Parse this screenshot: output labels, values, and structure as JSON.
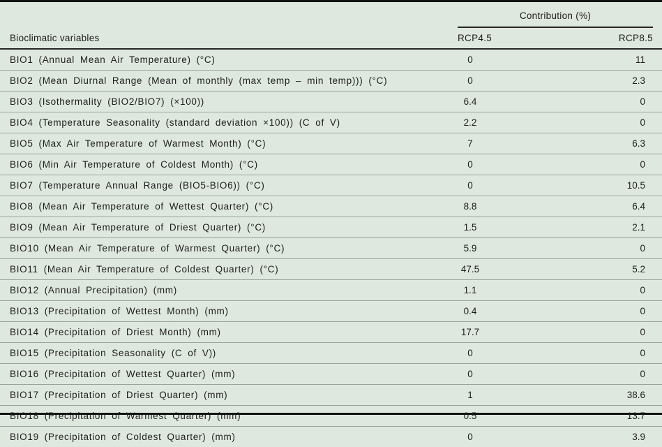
{
  "table": {
    "group_header": "Contribution (%)",
    "columns": {
      "variables": "Bioclimatic variables",
      "rcp45": "RCP4.5",
      "rcp85": "RCP8.5"
    },
    "rows": [
      {
        "variable": "BIO1 (Annual Mean Air Temperature) (°C)",
        "rcp45": "0",
        "rcp85": "11"
      },
      {
        "variable": "BIO2 (Mean Diurnal Range (Mean of monthly (max temp – min temp))) (°C)",
        "rcp45": "0",
        "rcp85": "2.3"
      },
      {
        "variable": "BIO3 (Isothermality (BIO2/BIO7) (×100))",
        "rcp45": "6.4",
        "rcp85": "0"
      },
      {
        "variable": "BIO4 (Temperature Seasonality (standard deviation ×100)) (C of V)",
        "rcp45": "2.2",
        "rcp85": "0"
      },
      {
        "variable": "BIO5 (Max Air Temperature of Warmest Month) (°C)",
        "rcp45": "7",
        "rcp85": "6.3"
      },
      {
        "variable": "BIO6 (Min Air Temperature of Coldest Month) (°C)",
        "rcp45": "0",
        "rcp85": "0"
      },
      {
        "variable": "BIO7 (Temperature Annual Range (BIO5-BIO6)) (°C)",
        "rcp45": "0",
        "rcp85": "10.5"
      },
      {
        "variable": "BIO8 (Mean Air Temperature of Wettest Quarter) (°C)",
        "rcp45": "8.8",
        "rcp85": "6.4"
      },
      {
        "variable": "BIO9 (Mean Air Temperature of Driest Quarter) (°C)",
        "rcp45": "1.5",
        "rcp85": "2.1"
      },
      {
        "variable": "BIO10 (Mean Air Temperature of Warmest Quarter) (°C)",
        "rcp45": "5.9",
        "rcp85": "0"
      },
      {
        "variable": "BIO11 (Mean Air Temperature of Coldest Quarter) (°C)",
        "rcp45": "47.5",
        "rcp85": "5.2"
      },
      {
        "variable": "BIO12 (Annual Precipitation) (mm)",
        "rcp45": "1.1",
        "rcp85": "0"
      },
      {
        "variable": "BIO13 (Precipitation of Wettest Month) (mm)",
        "rcp45": "0.4",
        "rcp85": "0"
      },
      {
        "variable": "BIO14 (Precipitation of Driest Month) (mm)",
        "rcp45": "17.7",
        "rcp85": "0"
      },
      {
        "variable": "BIO15 (Precipitation Seasonality (C of V))",
        "rcp45": "0",
        "rcp85": "0"
      },
      {
        "variable": "BIO16 (Precipitation of Wettest Quarter) (mm)",
        "rcp45": "0",
        "rcp85": "0"
      },
      {
        "variable": "BIO17 (Precipitation of Driest Quarter) (mm)",
        "rcp45": "1",
        "rcp85": "38.6"
      },
      {
        "variable": "BIO18 (Precipitation of Warmest Quarter) (mm)",
        "rcp45": "0.5",
        "rcp85": "13.7"
      },
      {
        "variable": "BIO19 (Precipitation of Coldest Quarter) (mm)",
        "rcp45": "0",
        "rcp85": "3.9"
      }
    ]
  },
  "colors": {
    "background": "#dfe8df",
    "rule_dark": "#121212",
    "rule_light": "#9aa49a",
    "text": "#1d1d1d"
  },
  "chart_data": {
    "type": "table",
    "title": "Contribution (%)",
    "columns": [
      "Bioclimatic variables",
      "RCP4.5",
      "RCP8.5"
    ],
    "rows": [
      [
        "BIO1 (Annual Mean Air Temperature) (°C)",
        0,
        11
      ],
      [
        "BIO2 (Mean Diurnal Range (Mean of monthly (max temp – min temp))) (°C)",
        0,
        2.3
      ],
      [
        "BIO3 (Isothermality (BIO2/BIO7) (×100))",
        6.4,
        0
      ],
      [
        "BIO4 (Temperature Seasonality (standard deviation ×100)) (C of V)",
        2.2,
        0
      ],
      [
        "BIO5 (Max Air Temperature of Warmest Month) (°C)",
        7,
        6.3
      ],
      [
        "BIO6 (Min Air Temperature of Coldest Month) (°C)",
        0,
        0
      ],
      [
        "BIO7 (Temperature Annual Range (BIO5-BIO6)) (°C)",
        0,
        10.5
      ],
      [
        "BIO8 (Mean Air Temperature of Wettest Quarter) (°C)",
        8.8,
        6.4
      ],
      [
        "BIO9 (Mean Air Temperature of Driest Quarter) (°C)",
        1.5,
        2.1
      ],
      [
        "BIO10 (Mean Air Temperature of Warmest Quarter) (°C)",
        5.9,
        0
      ],
      [
        "BIO11 (Mean Air Temperature of Coldest Quarter) (°C)",
        47.5,
        5.2
      ],
      [
        "BIO12 (Annual Precipitation) (mm)",
        1.1,
        0
      ],
      [
        "BIO13 (Precipitation of Wettest Month) (mm)",
        0.4,
        0
      ],
      [
        "BIO14 (Precipitation of Driest Month) (mm)",
        17.7,
        0
      ],
      [
        "BIO15 (Precipitation Seasonality (C of V))",
        0,
        0
      ],
      [
        "BIO16 (Precipitation of Wettest Quarter) (mm)",
        0,
        0
      ],
      [
        "BIO17 (Precipitation of Driest Quarter) (mm)",
        1,
        38.6
      ],
      [
        "BIO18 (Precipitation of Warmest Quarter) (mm)",
        0.5,
        13.7
      ],
      [
        "BIO19 (Precipitation of Coldest Quarter) (mm)",
        0,
        3.9
      ]
    ]
  }
}
